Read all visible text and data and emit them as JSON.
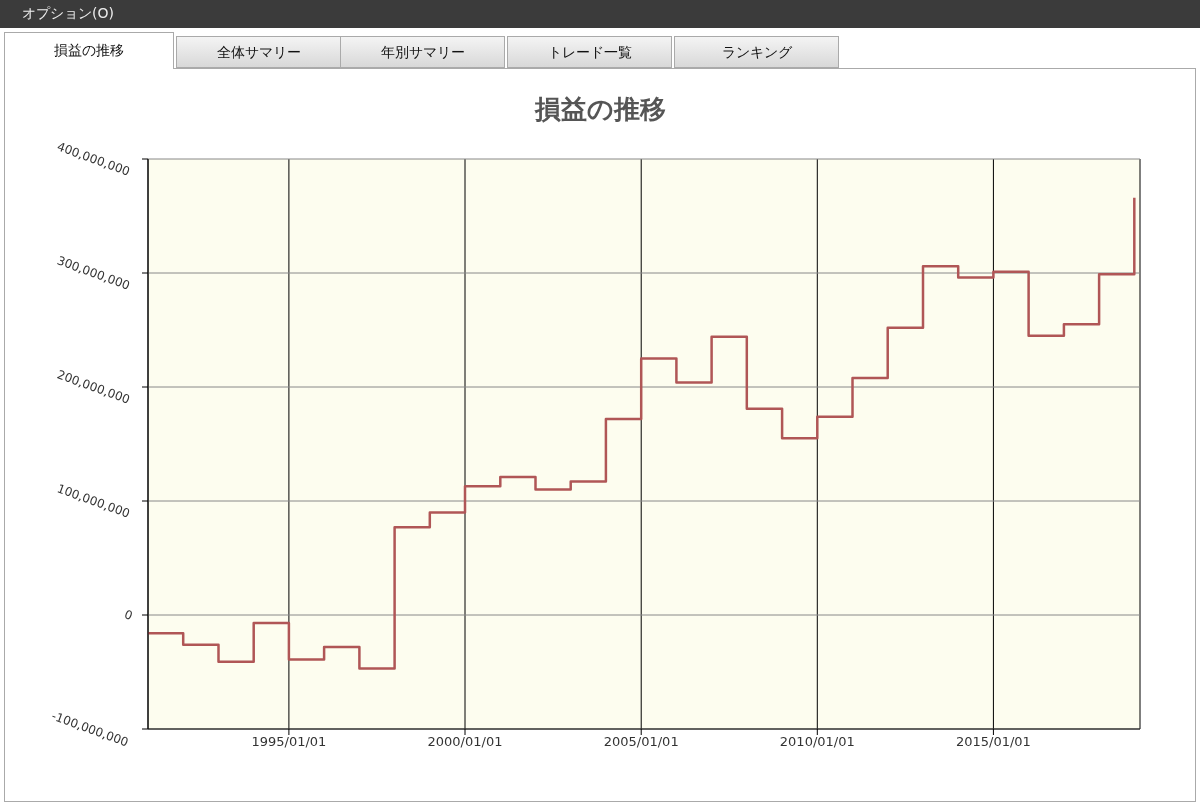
{
  "chart_data": {
    "type": "step",
    "title": "損益の推移",
    "annotations": [
      "オプション(O)",
      "損益の推移",
      "全体サマリー",
      "年別サマリー",
      "トレード一覧",
      "ランキング"
    ],
    "x": [
      "1991-01-01",
      "1992-01-01",
      "1993-01-01",
      "1994-01-01",
      "1995-01-01",
      "1996-01-01",
      "1997-01-01",
      "1998-01-01",
      "1999-01-01",
      "2000-01-01",
      "2001-01-01",
      "2002-01-01",
      "2003-01-01",
      "2004-01-01",
      "2005-01-01",
      "2006-01-01",
      "2007-01-01",
      "2008-01-01",
      "2009-01-01",
      "2010-01-01",
      "2011-01-01",
      "2012-01-01",
      "2013-01-01",
      "2014-01-01",
      "2015-01-01",
      "2016-01-01",
      "2017-01-01",
      "2018-01-01",
      "2019-01-01"
    ],
    "series": [
      {
        "color": "#b05656",
        "values": [
          -16000000,
          -26000000,
          -41000000,
          -7000000,
          -39000000,
          -28000000,
          -47000000,
          77000000,
          90000000,
          113000000,
          121000000,
          110000000,
          117000000,
          172000000,
          225000000,
          204000000,
          244000000,
          181000000,
          155000000,
          174000000,
          208000000,
          252000000,
          306000000,
          296000000,
          301000000,
          245000000,
          255000000,
          299000000,
          366000000
        ]
      }
    ],
    "xlim": [
      "1991-01-01",
      "2019-03-01"
    ],
    "xticks": [
      {
        "value": "1995-01-01",
        "label": "1995/01/01"
      },
      {
        "value": "2000-01-01",
        "label": "2000/01/01"
      },
      {
        "value": "2005-01-01",
        "label": "2005/01/01"
      },
      {
        "value": "2010-01-01",
        "label": "2010/01/01"
      },
      {
        "value": "2015-01-01",
        "label": "2015/01/01"
      }
    ],
    "ylim": [
      -100000000,
      400000000
    ],
    "yticks": [
      {
        "value": -100000000,
        "label": "-100,000,000"
      },
      0,
      {
        "value": 100000000,
        "label": "100,000,000"
      },
      {
        "value": 200000000,
        "label": "200,000,000"
      },
      {
        "value": 300000000,
        "label": "300,000,000"
      },
      {
        "value": 400000000,
        "label": "400,000,000"
      }
    ],
    "grid": true,
    "marker": "none",
    "line_style": "solid",
    "legend": false
  }
}
